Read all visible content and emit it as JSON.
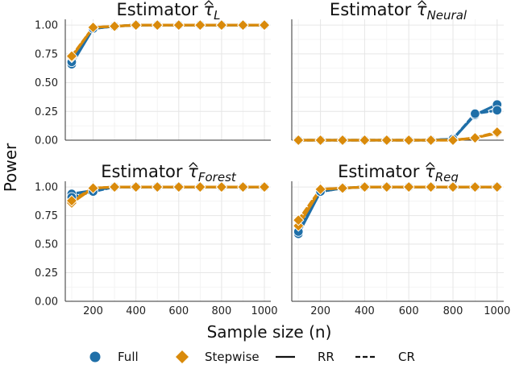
{
  "chart_data": {
    "type": "line",
    "ylabel": "Power",
    "xlabel": "Sample size (n)",
    "xlim": [
      70,
      1030
    ],
    "ylim": [
      0,
      1.05
    ],
    "xticks": [
      200,
      400,
      600,
      800,
      1000
    ],
    "xtick_labels": [
      "200",
      "400",
      "600",
      "800",
      "1000"
    ],
    "yticks": [
      0,
      0.25,
      0.5,
      0.75,
      1.0
    ],
    "ytick_labels": [
      "0.00",
      "0.25",
      "0.50",
      "0.75",
      "1.00"
    ],
    "x": [
      100,
      200,
      300,
      400,
      500,
      600,
      700,
      800,
      900,
      1000
    ],
    "colors": {
      "full": "#1f6fa8",
      "stepwise": "#d98a0b",
      "grid": "#e6e6e6"
    },
    "legend": {
      "position": "bottom",
      "items": [
        {
          "label": "Full",
          "kind": "circle"
        },
        {
          "label": "Stepwise",
          "kind": "diamond"
        },
        {
          "label": "RR",
          "kind": "solid"
        },
        {
          "label": "CR",
          "kind": "dashed"
        }
      ]
    },
    "panels": [
      {
        "title_prefix": "Estimator ",
        "symbol": "τ",
        "subscript": "L",
        "series": [
          {
            "name": "Full RR",
            "marker": "circle",
            "values": [
              0.66,
              0.97,
              0.99,
              1.0,
              1.0,
              1.0,
              1.0,
              1.0,
              1.0,
              1.0
            ]
          },
          {
            "name": "Full CR",
            "marker": "circle",
            "values": [
              0.68,
              0.97,
              0.99,
              1.0,
              1.0,
              1.0,
              1.0,
              1.0,
              1.0,
              1.0
            ]
          },
          {
            "name": "Stepwise RR",
            "marker": "diamond",
            "values": [
              0.72,
              0.98,
              0.99,
              1.0,
              1.0,
              1.0,
              1.0,
              1.0,
              1.0,
              1.0
            ]
          },
          {
            "name": "Stepwise CR",
            "marker": "diamond",
            "values": [
              0.73,
              0.98,
              0.99,
              1.0,
              1.0,
              1.0,
              1.0,
              1.0,
              1.0,
              1.0
            ]
          }
        ]
      },
      {
        "title_prefix": "Estimator ",
        "symbol": "τ",
        "subscript": "Neural",
        "series": [
          {
            "name": "Full RR",
            "marker": "circle",
            "values": [
              0.0,
              0.0,
              0.0,
              0.0,
              0.0,
              0.0,
              0.0,
              0.01,
              0.22,
              0.31
            ]
          },
          {
            "name": "Full CR",
            "marker": "circle",
            "values": [
              0.0,
              0.0,
              0.0,
              0.0,
              0.0,
              0.0,
              0.0,
              0.01,
              0.23,
              0.26
            ]
          },
          {
            "name": "Stepwise RR",
            "marker": "diamond",
            "values": [
              0.0,
              0.0,
              0.0,
              0.0,
              0.0,
              0.0,
              0.0,
              0.0,
              0.02,
              0.06
            ]
          },
          {
            "name": "Stepwise CR",
            "marker": "diamond",
            "values": [
              0.0,
              0.0,
              0.0,
              0.0,
              0.0,
              0.0,
              0.0,
              0.0,
              0.02,
              0.07
            ]
          }
        ]
      },
      {
        "title_prefix": "Estimator ",
        "symbol": "τ",
        "subscript": "Forest",
        "series": [
          {
            "name": "Full RR",
            "marker": "circle",
            "values": [
              0.94,
              0.97,
              1.0,
              1.0,
              1.0,
              1.0,
              1.0,
              1.0,
              1.0,
              1.0
            ]
          },
          {
            "name": "Full CR",
            "marker": "circle",
            "values": [
              0.91,
              0.96,
              1.0,
              1.0,
              1.0,
              1.0,
              1.0,
              1.0,
              1.0,
              1.0
            ]
          },
          {
            "name": "Stepwise RR",
            "marker": "diamond",
            "values": [
              0.86,
              0.99,
              1.0,
              1.0,
              1.0,
              1.0,
              1.0,
              1.0,
              1.0,
              1.0
            ]
          },
          {
            "name": "Stepwise CR",
            "marker": "diamond",
            "values": [
              0.88,
              0.99,
              1.0,
              1.0,
              1.0,
              1.0,
              1.0,
              1.0,
              1.0,
              1.0
            ]
          }
        ]
      },
      {
        "title_prefix": "Estimator ",
        "symbol": "τ",
        "subscript": "Reg",
        "series": [
          {
            "name": "Full RR",
            "marker": "circle",
            "values": [
              0.59,
              0.96,
              0.99,
              1.0,
              1.0,
              1.0,
              1.0,
              1.0,
              1.0,
              1.0
            ]
          },
          {
            "name": "Full CR",
            "marker": "circle",
            "values": [
              0.61,
              0.96,
              0.99,
              1.0,
              1.0,
              1.0,
              1.0,
              1.0,
              1.0,
              1.0
            ]
          },
          {
            "name": "Stepwise RR",
            "marker": "diamond",
            "values": [
              0.66,
              0.98,
              0.99,
              1.0,
              1.0,
              1.0,
              1.0,
              1.0,
              1.0,
              1.0
            ]
          },
          {
            "name": "Stepwise CR",
            "marker": "diamond",
            "values": [
              0.71,
              0.98,
              0.99,
              1.0,
              1.0,
              1.0,
              1.0,
              1.0,
              1.0,
              1.0
            ]
          }
        ]
      }
    ]
  }
}
